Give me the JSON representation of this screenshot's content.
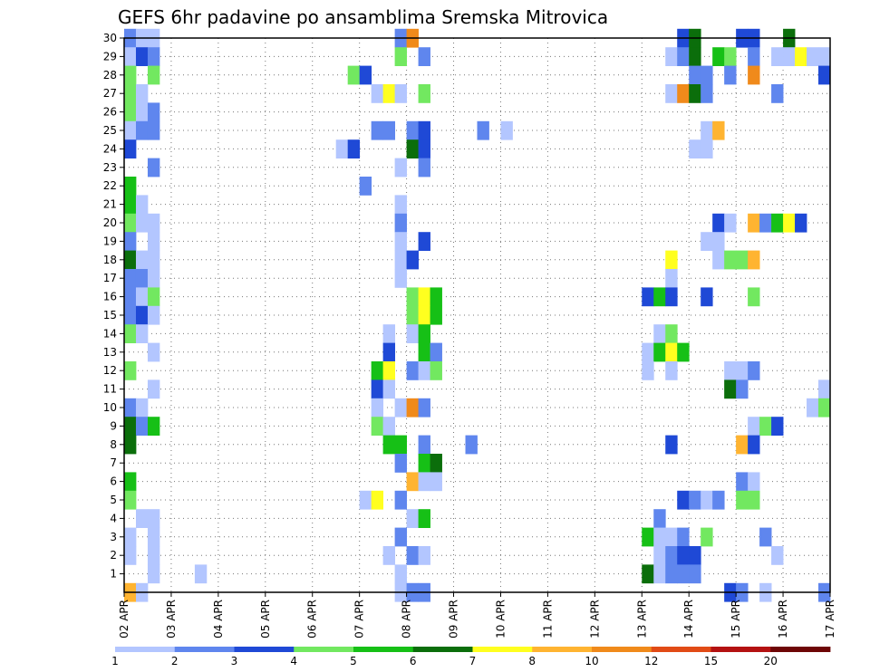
{
  "chart_data": {
    "type": "heatmap",
    "title": "GEFS 6hr padavine po ansamblima Sremska Mitrovica",
    "xlabel": "",
    "ylabel": "",
    "x_tick_labels": [
      "02 APR",
      "03 APR",
      "04 APR",
      "05 APR",
      "06 APR",
      "07 APR",
      "08 APR",
      "09 APR",
      "10 APR",
      "11 APR",
      "12 APR",
      "13 APR",
      "14 APR",
      "15 APR",
      "16 APR",
      "17 APR"
    ],
    "x_unit": "6-hour step from 02 APR",
    "x_range": [
      0,
      60
    ],
    "y_tick_labels": [
      "1",
      "2",
      "3",
      "4",
      "5",
      "6",
      "7",
      "8",
      "9",
      "10",
      "11",
      "12",
      "13",
      "14",
      "15",
      "16",
      "17",
      "18",
      "19",
      "20",
      "21",
      "22",
      "23",
      "24",
      "25",
      "26",
      "27",
      "28",
      "29",
      "30"
    ],
    "y_range": [
      0,
      30
    ],
    "grid": true,
    "color_scale": {
      "labels": [
        "1",
        "2",
        "3",
        "4",
        "5",
        "6",
        "7",
        "8",
        "10",
        "12",
        "15",
        "20"
      ],
      "colors": [
        "#b3c6ff",
        "#5f86ee",
        "#1f49d6",
        "#72e860",
        "#16c016",
        "#0b6e0b",
        "#ffff1f",
        "#ffb431",
        "#f08a1b",
        "#e14b16",
        "#b41212",
        "#6e0606"
      ]
    },
    "cells": [
      [
        0,
        30,
        2
      ],
      [
        1,
        30,
        1
      ],
      [
        2,
        30,
        1
      ],
      [
        23,
        30,
        2
      ],
      [
        24,
        30,
        9
      ],
      [
        47,
        30,
        3
      ],
      [
        48,
        30,
        6
      ],
      [
        52,
        30,
        3
      ],
      [
        53,
        30,
        3
      ],
      [
        56,
        30,
        6
      ],
      [
        0,
        29,
        1
      ],
      [
        1,
        29,
        3
      ],
      [
        2,
        29,
        2
      ],
      [
        23,
        29,
        4
      ],
      [
        25,
        29,
        2
      ],
      [
        46,
        29,
        1
      ],
      [
        47,
        29,
        2
      ],
      [
        48,
        29,
        6
      ],
      [
        50,
        29,
        5
      ],
      [
        51,
        29,
        4
      ],
      [
        53,
        29,
        2
      ],
      [
        55,
        29,
        1
      ],
      [
        56,
        29,
        1
      ],
      [
        57,
        29,
        7
      ],
      [
        58,
        29,
        1
      ],
      [
        59,
        29,
        1
      ],
      [
        0,
        28,
        4
      ],
      [
        2,
        28,
        4
      ],
      [
        19,
        28,
        4
      ],
      [
        20,
        28,
        3
      ],
      [
        48,
        28,
        2
      ],
      [
        49,
        28,
        2
      ],
      [
        51,
        28,
        2
      ],
      [
        53,
        28,
        9
      ],
      [
        59,
        28,
        3
      ],
      [
        0,
        27,
        4
      ],
      [
        1,
        27,
        1
      ],
      [
        21,
        27,
        1
      ],
      [
        22,
        27,
        7
      ],
      [
        23,
        27,
        1
      ],
      [
        25,
        27,
        4
      ],
      [
        46,
        27,
        1
      ],
      [
        47,
        27,
        9
      ],
      [
        48,
        27,
        6
      ],
      [
        49,
        27,
        2
      ],
      [
        55,
        27,
        2
      ],
      [
        0,
        26,
        4
      ],
      [
        1,
        26,
        1
      ],
      [
        2,
        26,
        2
      ],
      [
        0,
        25,
        1
      ],
      [
        1,
        25,
        2
      ],
      [
        2,
        25,
        2
      ],
      [
        21,
        25,
        2
      ],
      [
        22,
        25,
        2
      ],
      [
        24,
        25,
        2
      ],
      [
        25,
        25,
        3
      ],
      [
        30,
        25,
        2
      ],
      [
        32,
        25,
        1
      ],
      [
        49,
        25,
        1
      ],
      [
        50,
        25,
        8
      ],
      [
        0,
        24,
        3
      ],
      [
        18,
        24,
        1
      ],
      [
        19,
        24,
        3
      ],
      [
        24,
        24,
        6
      ],
      [
        25,
        24,
        3
      ],
      [
        48,
        24,
        1
      ],
      [
        49,
        24,
        1
      ],
      [
        2,
        23,
        2
      ],
      [
        23,
        23,
        1
      ],
      [
        25,
        23,
        2
      ],
      [
        0,
        22,
        5
      ],
      [
        20,
        22,
        2
      ],
      [
        0,
        21,
        5
      ],
      [
        1,
        21,
        1
      ],
      [
        23,
        21,
        1
      ],
      [
        0,
        20,
        4
      ],
      [
        1,
        20,
        1
      ],
      [
        2,
        20,
        1
      ],
      [
        23,
        20,
        2
      ],
      [
        50,
        20,
        3
      ],
      [
        51,
        20,
        1
      ],
      [
        53,
        20,
        8
      ],
      [
        54,
        20,
        2
      ],
      [
        55,
        20,
        5
      ],
      [
        56,
        20,
        7
      ],
      [
        57,
        20,
        3
      ],
      [
        0,
        19,
        2
      ],
      [
        2,
        19,
        1
      ],
      [
        23,
        19,
        1
      ],
      [
        25,
        19,
        3
      ],
      [
        49,
        19,
        1
      ],
      [
        50,
        19,
        1
      ],
      [
        0,
        18,
        6
      ],
      [
        1,
        18,
        1
      ],
      [
        2,
        18,
        1
      ],
      [
        23,
        18,
        1
      ],
      [
        24,
        18,
        3
      ],
      [
        46,
        18,
        7
      ],
      [
        50,
        18,
        1
      ],
      [
        51,
        18,
        4
      ],
      [
        52,
        18,
        4
      ],
      [
        53,
        18,
        8
      ],
      [
        0,
        17,
        2
      ],
      [
        1,
        17,
        2
      ],
      [
        2,
        17,
        1
      ],
      [
        23,
        17,
        1
      ],
      [
        46,
        17,
        1
      ],
      [
        0,
        16,
        2
      ],
      [
        1,
        16,
        1
      ],
      [
        2,
        16,
        4
      ],
      [
        24,
        16,
        4
      ],
      [
        25,
        16,
        7
      ],
      [
        26,
        16,
        5
      ],
      [
        44,
        16,
        3
      ],
      [
        45,
        16,
        5
      ],
      [
        46,
        16,
        3
      ],
      [
        49,
        16,
        3
      ],
      [
        53,
        16,
        4
      ],
      [
        0,
        15,
        2
      ],
      [
        1,
        15,
        3
      ],
      [
        2,
        15,
        1
      ],
      [
        24,
        15,
        4
      ],
      [
        25,
        15,
        7
      ],
      [
        26,
        15,
        5
      ],
      [
        0,
        14,
        4
      ],
      [
        1,
        14,
        1
      ],
      [
        22,
        14,
        1
      ],
      [
        24,
        14,
        1
      ],
      [
        25,
        14,
        5
      ],
      [
        45,
        14,
        1
      ],
      [
        46,
        14,
        4
      ],
      [
        2,
        13,
        1
      ],
      [
        22,
        13,
        3
      ],
      [
        25,
        13,
        5
      ],
      [
        26,
        13,
        2
      ],
      [
        44,
        13,
        1
      ],
      [
        45,
        13,
        5
      ],
      [
        46,
        13,
        7
      ],
      [
        47,
        13,
        5
      ],
      [
        0,
        12,
        4
      ],
      [
        21,
        12,
        5
      ],
      [
        22,
        12,
        7
      ],
      [
        24,
        12,
        2
      ],
      [
        25,
        12,
        1
      ],
      [
        26,
        12,
        4
      ],
      [
        44,
        12,
        1
      ],
      [
        46,
        12,
        1
      ],
      [
        51,
        12,
        1
      ],
      [
        52,
        12,
        1
      ],
      [
        53,
        12,
        2
      ],
      [
        2,
        11,
        1
      ],
      [
        21,
        11,
        3
      ],
      [
        22,
        11,
        1
      ],
      [
        51,
        11,
        6
      ],
      [
        52,
        11,
        2
      ],
      [
        59,
        11,
        1
      ],
      [
        0,
        10,
        2
      ],
      [
        1,
        10,
        1
      ],
      [
        21,
        10,
        1
      ],
      [
        23,
        10,
        1
      ],
      [
        24,
        10,
        9
      ],
      [
        25,
        10,
        2
      ],
      [
        58,
        10,
        1
      ],
      [
        59,
        10,
        4
      ],
      [
        0,
        9,
        6
      ],
      [
        1,
        9,
        2
      ],
      [
        2,
        9,
        5
      ],
      [
        21,
        9,
        4
      ],
      [
        22,
        9,
        1
      ],
      [
        53,
        9,
        1
      ],
      [
        54,
        9,
        4
      ],
      [
        55,
        9,
        3
      ],
      [
        0,
        8,
        6
      ],
      [
        22,
        8,
        5
      ],
      [
        23,
        8,
        5
      ],
      [
        25,
        8,
        2
      ],
      [
        29,
        8,
        2
      ],
      [
        46,
        8,
        3
      ],
      [
        52,
        8,
        8
      ],
      [
        53,
        8,
        3
      ],
      [
        23,
        7,
        2
      ],
      [
        25,
        7,
        5
      ],
      [
        26,
        7,
        6
      ],
      [
        0,
        6,
        5
      ],
      [
        24,
        6,
        8
      ],
      [
        25,
        6,
        1
      ],
      [
        26,
        6,
        1
      ],
      [
        52,
        6,
        2
      ],
      [
        53,
        6,
        1
      ],
      [
        0,
        5,
        4
      ],
      [
        20,
        5,
        1
      ],
      [
        21,
        5,
        7
      ],
      [
        23,
        5,
        2
      ],
      [
        47,
        5,
        3
      ],
      [
        48,
        5,
        2
      ],
      [
        49,
        5,
        1
      ],
      [
        50,
        5,
        2
      ],
      [
        52,
        5,
        4
      ],
      [
        53,
        5,
        4
      ],
      [
        1,
        4,
        1
      ],
      [
        2,
        4,
        1
      ],
      [
        24,
        4,
        1
      ],
      [
        25,
        4,
        5
      ],
      [
        45,
        4,
        2
      ],
      [
        0,
        3,
        1
      ],
      [
        2,
        3,
        1
      ],
      [
        23,
        3,
        2
      ],
      [
        44,
        3,
        5
      ],
      [
        45,
        3,
        1
      ],
      [
        46,
        3,
        1
      ],
      [
        47,
        3,
        2
      ],
      [
        49,
        3,
        4
      ],
      [
        54,
        3,
        2
      ],
      [
        0,
        2,
        1
      ],
      [
        2,
        2,
        1
      ],
      [
        22,
        2,
        1
      ],
      [
        24,
        2,
        2
      ],
      [
        25,
        2,
        1
      ],
      [
        45,
        2,
        1
      ],
      [
        46,
        2,
        2
      ],
      [
        47,
        2,
        3
      ],
      [
        48,
        2,
        3
      ],
      [
        55,
        2,
        1
      ],
      [
        2,
        1,
        1
      ],
      [
        6,
        1,
        1
      ],
      [
        23,
        1,
        1
      ],
      [
        44,
        1,
        6
      ],
      [
        45,
        1,
        1
      ],
      [
        46,
        1,
        2
      ],
      [
        47,
        1,
        2
      ],
      [
        48,
        1,
        2
      ],
      [
        0,
        0,
        8
      ],
      [
        1,
        0,
        1
      ],
      [
        23,
        0,
        1
      ],
      [
        24,
        0,
        2
      ],
      [
        25,
        0,
        2
      ],
      [
        51,
        0,
        3
      ],
      [
        52,
        0,
        2
      ],
      [
        54,
        0,
        1
      ],
      [
        59,
        0,
        2
      ]
    ]
  }
}
